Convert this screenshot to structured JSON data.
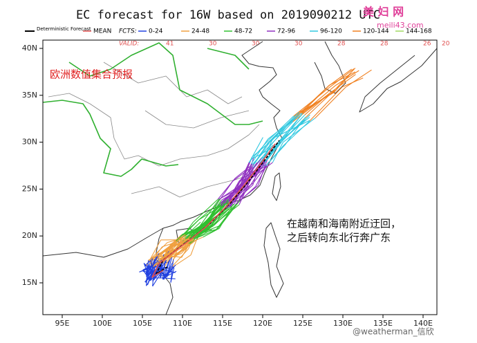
{
  "title": "EC forecast for 16W based on 2019090212 UTC",
  "legend": {
    "deterministic": "Deterministic Forecast",
    "fcts_label": "FCTS:",
    "valid_label": "VALID:",
    "items": [
      {
        "label": "MEAN",
        "color": "#e05050"
      },
      {
        "label": "0-24",
        "color": "#2040e0",
        "valid": "41"
      },
      {
        "label": "24-48",
        "color": "#f0a040",
        "valid": "30"
      },
      {
        "label": "48-72",
        "color": "#30c030",
        "valid": "30"
      },
      {
        "label": "72-96",
        "color": "#9030c0",
        "valid": "30"
      },
      {
        "label": "96-120",
        "color": "#30c8e0",
        "valid": "28"
      },
      {
        "label": "120-144",
        "color": "#f08020",
        "valid": "28"
      },
      {
        "label": "144-168",
        "color": "#a0d860",
        "valid": "26"
      }
    ],
    "extra_valid": "20"
  },
  "lon_labels": [
    "95E",
    "100E",
    "105E",
    "110E",
    "115E",
    "120E",
    "125E",
    "130E",
    "135E",
    "140E"
  ],
  "lat_labels": [
    "40N",
    "35N",
    "30N",
    "25N",
    "20N",
    "15N"
  ],
  "annotations": {
    "source": "欧洲数值集合预报",
    "note_line1": "在越南和海南附近迂回，",
    "note_line2": "之后转向东北行奔广东"
  },
  "watermark": {
    "site": "美 妇 网",
    "url": "meili43.com",
    "author": "@weatherman_信欣"
  }
}
